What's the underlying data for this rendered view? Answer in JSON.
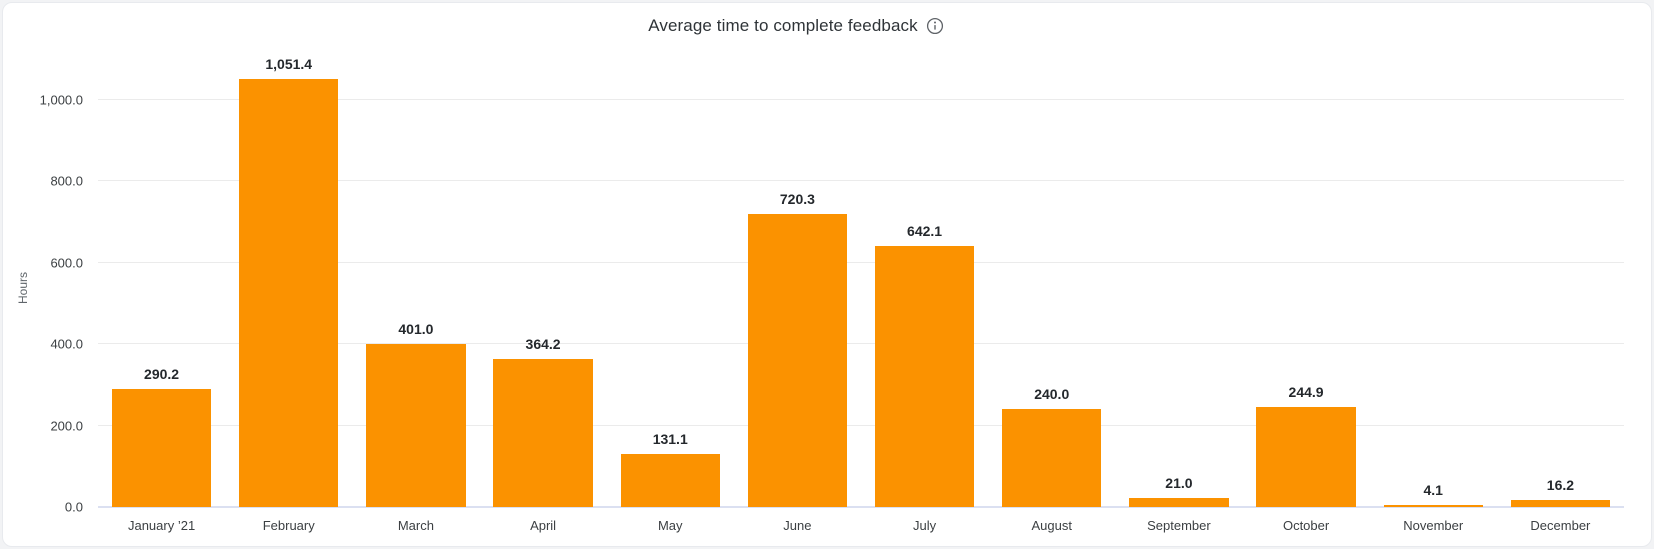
{
  "card": {
    "title": "Average time to complete feedback"
  },
  "chart_data": {
    "type": "bar",
    "title": "Average time to complete feedback",
    "xlabel": "",
    "ylabel": "Hours",
    "categories": [
      "January ’21",
      "February",
      "March",
      "April",
      "May",
      "June",
      "July",
      "August",
      "September",
      "October",
      "November",
      "December"
    ],
    "values": [
      290.2,
      1051.4,
      401.0,
      364.2,
      131.1,
      720.3,
      642.1,
      240.0,
      21.0,
      244.9,
      4.1,
      16.2
    ],
    "value_labels": [
      "290.2",
      "1,051.4",
      "401.0",
      "364.2",
      "131.1",
      "720.3",
      "642.1",
      "240.0",
      "21.0",
      "244.9",
      "4.1",
      "16.2"
    ],
    "yticks": [
      0,
      200,
      400,
      600,
      800,
      1000
    ],
    "ytick_labels": [
      "0.0",
      "200.0",
      "400.0",
      "600.0",
      "800.0",
      "1,000.0"
    ],
    "ylim": [
      0,
      1100
    ],
    "grid": true,
    "legend": "none",
    "bar_color": "#FB9200",
    "gridline_color": "#ebebeb",
    "baseline_color": "#dbe0f1"
  }
}
